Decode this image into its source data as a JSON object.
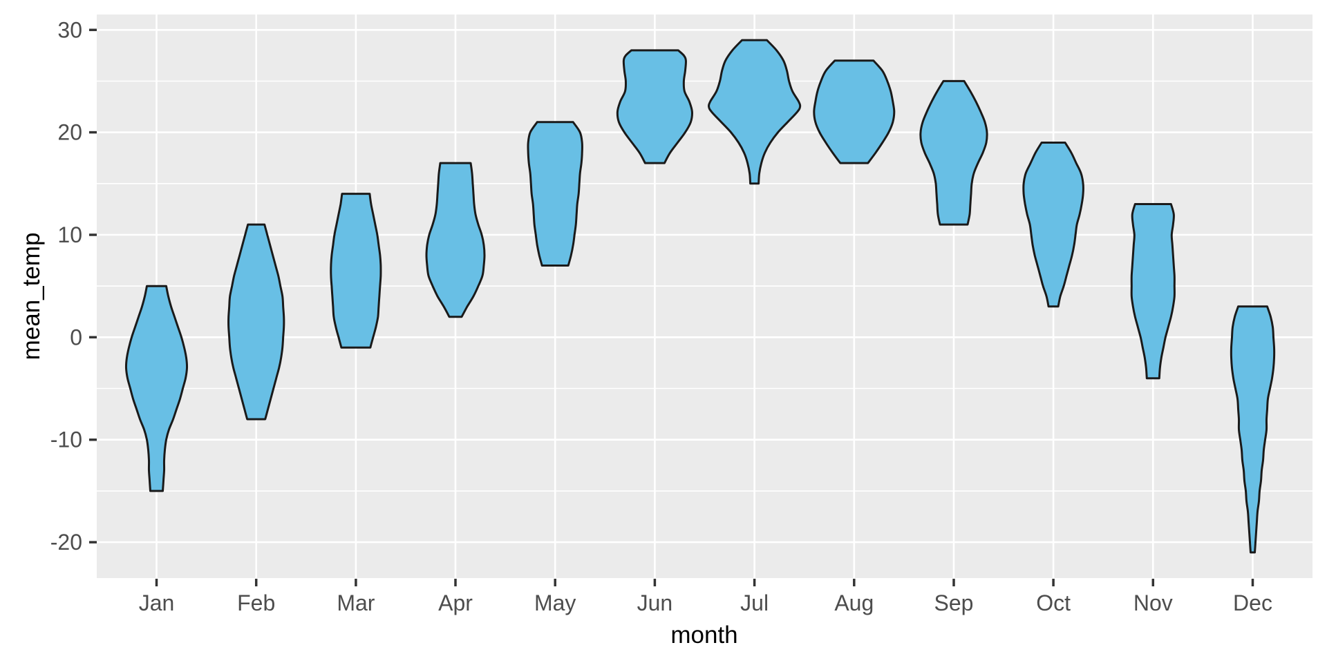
{
  "chart_data": {
    "type": "violin",
    "title": "",
    "xlabel": "month",
    "ylabel": "mean_temp",
    "categories": [
      "Jan",
      "Feb",
      "Mar",
      "Apr",
      "May",
      "Jun",
      "Jul",
      "Aug",
      "Sep",
      "Oct",
      "Nov",
      "Dec"
    ],
    "y_axis": {
      "major_ticks": [
        30,
        20,
        10,
        0,
        -10,
        -20
      ],
      "minor_gridlines": [
        25,
        15,
        5,
        -5,
        -15
      ],
      "range": [
        -23.5,
        31.5
      ]
    },
    "grid": true,
    "legend_position": "none",
    "style": {
      "panel_bg": "#EBEBEB",
      "grid_color": "#FFFFFF",
      "violin_fill": "#68BFE5",
      "violin_stroke": "#1A1A1A",
      "tick_label_color": "#4D4D4D",
      "tick_mark_color": "#333333",
      "axis_title_color": "#000000"
    },
    "series": [
      {
        "month": "Jan",
        "min": -15,
        "max": 5,
        "widest_at": -3,
        "profile": [
          [
            5,
            14
          ],
          [
            4,
            17
          ],
          [
            3,
            21
          ],
          [
            2,
            26
          ],
          [
            1,
            31
          ],
          [
            0,
            36
          ],
          [
            -1,
            40
          ],
          [
            -2,
            43
          ],
          [
            -3,
            44
          ],
          [
            -4,
            42
          ],
          [
            -5,
            38
          ],
          [
            -6,
            34
          ],
          [
            -7,
            29
          ],
          [
            -8,
            24
          ],
          [
            -9,
            18
          ],
          [
            -10,
            14
          ],
          [
            -11,
            12
          ],
          [
            -12,
            11
          ],
          [
            -13,
            11
          ],
          [
            -14,
            10
          ],
          [
            -15,
            9
          ]
        ]
      },
      {
        "month": "Feb",
        "min": -8,
        "max": 11,
        "widest_at": 1,
        "profile": [
          [
            11,
            12
          ],
          [
            10,
            16
          ],
          [
            9,
            20
          ],
          [
            8,
            24
          ],
          [
            7,
            28
          ],
          [
            6,
            32
          ],
          [
            5,
            35
          ],
          [
            4,
            38
          ],
          [
            3,
            39
          ],
          [
            2,
            40
          ],
          [
            1,
            40
          ],
          [
            0,
            39
          ],
          [
            -1,
            38
          ],
          [
            -2,
            36
          ],
          [
            -3,
            33
          ],
          [
            -4,
            29
          ],
          [
            -5,
            25
          ],
          [
            -6,
            21
          ],
          [
            -7,
            17
          ],
          [
            -8,
            13
          ]
        ]
      },
      {
        "month": "Mar",
        "min": -1,
        "max": 14,
        "widest_at": 6,
        "profile": [
          [
            14,
            20
          ],
          [
            13,
            22
          ],
          [
            12,
            25
          ],
          [
            11,
            28
          ],
          [
            10,
            31
          ],
          [
            9,
            33
          ],
          [
            8,
            35
          ],
          [
            7,
            36
          ],
          [
            6,
            36
          ],
          [
            5,
            35
          ],
          [
            4,
            34
          ],
          [
            3,
            33
          ],
          [
            2,
            32
          ],
          [
            1,
            29
          ],
          [
            0,
            25
          ],
          [
            -1,
            21
          ]
        ]
      },
      {
        "month": "Apr",
        "min": 2,
        "max": 17,
        "widest_at": 8,
        "profile": [
          [
            17,
            22
          ],
          [
            16,
            24
          ],
          [
            15,
            25
          ],
          [
            14,
            26
          ],
          [
            13,
            27
          ],
          [
            12,
            29
          ],
          [
            11,
            33
          ],
          [
            10,
            38
          ],
          [
            9,
            41
          ],
          [
            8,
            42
          ],
          [
            7,
            41
          ],
          [
            6,
            39
          ],
          [
            5,
            33
          ],
          [
            4,
            26
          ],
          [
            3,
            17
          ],
          [
            2,
            9
          ]
        ]
      },
      {
        "month": "May",
        "min": 7,
        "max": 21,
        "widest_at": 18,
        "profile": [
          [
            21,
            26
          ],
          [
            20,
            36
          ],
          [
            19,
            39
          ],
          [
            18,
            39
          ],
          [
            17,
            38
          ],
          [
            16,
            36
          ],
          [
            15,
            35
          ],
          [
            14,
            34
          ],
          [
            13,
            32
          ],
          [
            12,
            31
          ],
          [
            11,
            30
          ],
          [
            10,
            28
          ],
          [
            9,
            26
          ],
          [
            8,
            23
          ],
          [
            7,
            19
          ]
        ]
      },
      {
        "month": "Jun",
        "min": 17,
        "max": 28,
        "widest_at": 22,
        "profile": [
          [
            28,
            34
          ],
          [
            27.5,
            42
          ],
          [
            27,
            45
          ],
          [
            26,
            44
          ],
          [
            25,
            42
          ],
          [
            24,
            43
          ],
          [
            23,
            50
          ],
          [
            22,
            54
          ],
          [
            21,
            52
          ],
          [
            20,
            44
          ],
          [
            19,
            33
          ],
          [
            18,
            22
          ],
          [
            17,
            14
          ]
        ]
      },
      {
        "month": "Jul",
        "min": 15,
        "max": 29,
        "widest_at": 22.5,
        "profile": [
          [
            29,
            18
          ],
          [
            28,
            32
          ],
          [
            27,
            42
          ],
          [
            26,
            47
          ],
          [
            25,
            50
          ],
          [
            24,
            55
          ],
          [
            23,
            64
          ],
          [
            22.5,
            66
          ],
          [
            22,
            62
          ],
          [
            21,
            48
          ],
          [
            20,
            34
          ],
          [
            19,
            23
          ],
          [
            18,
            15
          ],
          [
            17,
            10
          ],
          [
            16,
            7
          ],
          [
            15,
            6
          ]
        ]
      },
      {
        "month": "Aug",
        "min": 17,
        "max": 27,
        "widest_at": 22,
        "profile": [
          [
            27,
            28
          ],
          [
            26,
            41
          ],
          [
            25,
            48
          ],
          [
            24,
            53
          ],
          [
            23,
            56
          ],
          [
            22,
            58
          ],
          [
            21,
            56
          ],
          [
            20,
            50
          ],
          [
            19,
            41
          ],
          [
            18,
            31
          ],
          [
            17,
            20
          ]
        ]
      },
      {
        "month": "Sep",
        "min": 11,
        "max": 25,
        "widest_at": 20,
        "profile": [
          [
            25,
            15
          ],
          [
            24,
            24
          ],
          [
            23,
            32
          ],
          [
            22,
            39
          ],
          [
            21,
            45
          ],
          [
            20,
            48
          ],
          [
            19,
            47
          ],
          [
            18,
            42
          ],
          [
            17,
            35
          ],
          [
            16,
            29
          ],
          [
            15,
            26
          ],
          [
            14,
            25
          ],
          [
            13,
            24
          ],
          [
            12,
            23
          ],
          [
            11,
            20
          ]
        ]
      },
      {
        "month": "Oct",
        "min": 3,
        "max": 19,
        "widest_at": 14,
        "profile": [
          [
            19,
            17
          ],
          [
            18,
            26
          ],
          [
            17,
            33
          ],
          [
            16,
            40
          ],
          [
            15,
            43
          ],
          [
            14,
            43
          ],
          [
            13,
            41
          ],
          [
            12,
            38
          ],
          [
            11,
            34
          ],
          [
            10,
            32
          ],
          [
            9,
            30
          ],
          [
            8,
            27
          ],
          [
            7,
            23
          ],
          [
            6,
            19
          ],
          [
            5,
            15
          ],
          [
            4,
            10
          ],
          [
            3,
            7
          ]
        ]
      },
      {
        "month": "Nov",
        "min": -4,
        "max": 13,
        "widest_at": 5,
        "profile": [
          [
            13,
            26
          ],
          [
            12,
            30
          ],
          [
            11,
            29
          ],
          [
            10,
            27
          ],
          [
            9,
            28
          ],
          [
            8,
            29
          ],
          [
            7,
            30
          ],
          [
            6,
            31
          ],
          [
            5,
            31
          ],
          [
            4,
            31
          ],
          [
            3,
            29
          ],
          [
            2,
            26
          ],
          [
            1,
            22
          ],
          [
            0,
            18
          ],
          [
            -1,
            15
          ],
          [
            -2,
            12
          ],
          [
            -3,
            10
          ],
          [
            -4,
            9
          ]
        ]
      },
      {
        "month": "Dec",
        "min": -21,
        "max": 3,
        "widest_at": -1,
        "profile": [
          [
            3,
            21
          ],
          [
            2,
            26
          ],
          [
            1,
            29
          ],
          [
            0,
            30
          ],
          [
            -1,
            31
          ],
          [
            -2,
            31
          ],
          [
            -3,
            30
          ],
          [
            -4,
            28
          ],
          [
            -5,
            25
          ],
          [
            -6,
            22
          ],
          [
            -7,
            21
          ],
          [
            -8,
            20
          ],
          [
            -9,
            20
          ],
          [
            -10,
            18
          ],
          [
            -11,
            16
          ],
          [
            -12,
            15
          ],
          [
            -13,
            13
          ],
          [
            -14,
            12
          ],
          [
            -15,
            10
          ],
          [
            -16,
            9
          ],
          [
            -17,
            7
          ],
          [
            -18,
            6
          ],
          [
            -19,
            5
          ],
          [
            -20,
            4
          ],
          [
            -21,
            3
          ]
        ]
      }
    ]
  }
}
